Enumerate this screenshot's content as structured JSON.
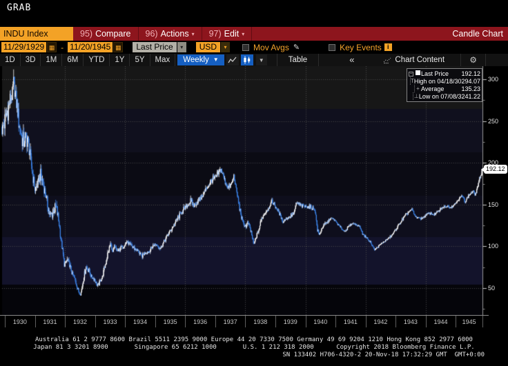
{
  "window": {
    "grab_label": "GRAB"
  },
  "icons": {
    "caret_down": "▾",
    "dropdown_arrow": "▼",
    "calendar": "▦",
    "pencil": "✎",
    "info": "i",
    "collapse": "«",
    "gear": "⚙",
    "expander_minus": "−",
    "legend_markers": {
      "high": "T",
      "average": "+",
      "low": "⊥"
    }
  },
  "titlebar": {
    "security": "INDU Index",
    "compare_num": "95)",
    "compare_label": "Compare",
    "actions_num": "96)",
    "actions_label": "Actions",
    "edit_num": "97)",
    "edit_label": "Edit",
    "title": "Candle Chart"
  },
  "filters": {
    "date_from": "11/29/1929",
    "range_separator": "-",
    "date_to": "11/20/1945",
    "field_select": "Last Price",
    "currency_select": "USD",
    "mov_avgs_label": "Mov Avgs",
    "key_events_label": "Key Events"
  },
  "toolbar": {
    "periods": [
      "1D",
      "3D",
      "1M",
      "6M",
      "YTD",
      "1Y",
      "5Y",
      "Max"
    ],
    "frequency": "Weekly",
    "table_label": "Table",
    "chart_content_label": "Chart Content"
  },
  "chart": {
    "legend": {
      "rows": [
        {
          "label": "Last Price",
          "value": "192.12"
        },
        {
          "label": "High on 04/18/30",
          "value": "294.07"
        },
        {
          "label": "Average",
          "value": "135.23"
        },
        {
          "label": "Low on 07/08/32",
          "value": "41.22"
        }
      ]
    },
    "price_badge": "192.12"
  },
  "chart_data": {
    "type": "candlestick",
    "symbol": "INDU Index",
    "frequency": "Weekly",
    "range_start": "11/29/1929",
    "range_end": "11/20/1945",
    "last_price_value": 192.12,
    "stats": {
      "high": 294.07,
      "high_date": "04/18/30",
      "average": 135.23,
      "low": 41.22,
      "low_date": "07/08/32"
    },
    "y_axis": {
      "ticks": [
        300,
        250,
        200,
        150,
        100,
        50
      ],
      "minor_step": 25,
      "top_value": 315,
      "bottom_value": 18
    },
    "x_axis": {
      "years": [
        "1930",
        "1931",
        "1932",
        "1933",
        "1934",
        "1935",
        "1936",
        "1937",
        "1938",
        "1939",
        "1940",
        "1941",
        "1942",
        "1943",
        "1944",
        "1945"
      ]
    },
    "colors": {
      "up": "#ffffff",
      "down": "#3b82e6",
      "grid": "#4a4a4a",
      "axis": "#999999"
    },
    "anchors": [
      [
        1929.91,
        240
      ],
      [
        1930.0,
        250
      ],
      [
        1930.12,
        268
      ],
      [
        1930.22,
        280
      ],
      [
        1930.3,
        292
      ],
      [
        1930.38,
        275
      ],
      [
        1930.5,
        240
      ],
      [
        1930.62,
        225
      ],
      [
        1930.75,
        230
      ],
      [
        1930.87,
        200
      ],
      [
        1931.0,
        168
      ],
      [
        1931.1,
        175
      ],
      [
        1931.17,
        188
      ],
      [
        1931.3,
        172
      ],
      [
        1931.42,
        150
      ],
      [
        1931.5,
        136
      ],
      [
        1931.58,
        140
      ],
      [
        1931.7,
        148
      ],
      [
        1931.8,
        128
      ],
      [
        1931.9,
        100
      ],
      [
        1931.98,
        78
      ],
      [
        1932.08,
        84
      ],
      [
        1932.2,
        72
      ],
      [
        1932.35,
        58
      ],
      [
        1932.45,
        46
      ],
      [
        1932.52,
        42
      ],
      [
        1932.6,
        58
      ],
      [
        1932.7,
        76
      ],
      [
        1932.78,
        72
      ],
      [
        1932.88,
        64
      ],
      [
        1933.0,
        60
      ],
      [
        1933.08,
        52
      ],
      [
        1933.16,
        58
      ],
      [
        1933.25,
        64
      ],
      [
        1933.4,
        88
      ],
      [
        1933.52,
        104
      ],
      [
        1933.58,
        92
      ],
      [
        1933.65,
        100
      ],
      [
        1933.75,
        94
      ],
      [
        1933.85,
        98
      ],
      [
        1933.95,
        100
      ],
      [
        1934.05,
        106
      ],
      [
        1934.15,
        102
      ],
      [
        1934.3,
        98
      ],
      [
        1934.45,
        94
      ],
      [
        1934.55,
        88
      ],
      [
        1934.65,
        92
      ],
      [
        1934.8,
        94
      ],
      [
        1934.95,
        102
      ],
      [
        1935.05,
        102
      ],
      [
        1935.18,
        98
      ],
      [
        1935.3,
        106
      ],
      [
        1935.45,
        116
      ],
      [
        1935.6,
        124
      ],
      [
        1935.75,
        134
      ],
      [
        1935.9,
        142
      ],
      [
        1936.05,
        148
      ],
      [
        1936.18,
        154
      ],
      [
        1936.28,
        148
      ],
      [
        1936.45,
        156
      ],
      [
        1936.6,
        162
      ],
      [
        1936.75,
        172
      ],
      [
        1936.9,
        180
      ],
      [
        1937.0,
        182
      ],
      [
        1937.12,
        188
      ],
      [
        1937.2,
        192
      ],
      [
        1937.32,
        178
      ],
      [
        1937.45,
        170
      ],
      [
        1937.55,
        176
      ],
      [
        1937.62,
        184
      ],
      [
        1937.72,
        164
      ],
      [
        1937.8,
        148
      ],
      [
        1937.9,
        130
      ],
      [
        1938.0,
        124
      ],
      [
        1938.1,
        128
      ],
      [
        1938.2,
        116
      ],
      [
        1938.28,
        102
      ],
      [
        1938.35,
        110
      ],
      [
        1938.45,
        120
      ],
      [
        1938.55,
        134
      ],
      [
        1938.65,
        140
      ],
      [
        1938.78,
        146
      ],
      [
        1938.88,
        154
      ],
      [
        1939.0,
        148
      ],
      [
        1939.12,
        140
      ],
      [
        1939.25,
        130
      ],
      [
        1939.38,
        134
      ],
      [
        1939.5,
        136
      ],
      [
        1939.62,
        140
      ],
      [
        1939.7,
        152
      ],
      [
        1939.8,
        150
      ],
      [
        1939.92,
        148
      ],
      [
        1940.05,
        148
      ],
      [
        1940.2,
        146
      ],
      [
        1940.32,
        144
      ],
      [
        1940.4,
        120
      ],
      [
        1940.46,
        114
      ],
      [
        1940.58,
        124
      ],
      [
        1940.7,
        128
      ],
      [
        1940.85,
        134
      ],
      [
        1940.95,
        132
      ],
      [
        1941.05,
        128
      ],
      [
        1941.18,
        122
      ],
      [
        1941.3,
        118
      ],
      [
        1941.45,
        124
      ],
      [
        1941.58,
        128
      ],
      [
        1941.7,
        126
      ],
      [
        1941.8,
        124
      ],
      [
        1941.92,
        114
      ],
      [
        1942.05,
        110
      ],
      [
        1942.18,
        104
      ],
      [
        1942.3,
        96
      ],
      [
        1942.42,
        100
      ],
      [
        1942.55,
        104
      ],
      [
        1942.7,
        108
      ],
      [
        1942.85,
        112
      ],
      [
        1943.0,
        120
      ],
      [
        1943.15,
        128
      ],
      [
        1943.3,
        136
      ],
      [
        1943.45,
        142
      ],
      [
        1943.55,
        144
      ],
      [
        1943.65,
        136
      ],
      [
        1943.78,
        134
      ],
      [
        1943.9,
        134
      ],
      [
        1944.02,
        138
      ],
      [
        1944.15,
        140
      ],
      [
        1944.28,
        138
      ],
      [
        1944.42,
        142
      ],
      [
        1944.55,
        146
      ],
      [
        1944.7,
        148
      ],
      [
        1944.85,
        147
      ],
      [
        1945.0,
        152
      ],
      [
        1945.12,
        158
      ],
      [
        1945.22,
        160
      ],
      [
        1945.32,
        154
      ],
      [
        1945.45,
        162
      ],
      [
        1945.58,
        166
      ],
      [
        1945.65,
        162
      ],
      [
        1945.75,
        174
      ],
      [
        1945.82,
        184
      ],
      [
        1945.89,
        192.12
      ]
    ]
  },
  "footer": {
    "lines": [
      "Australia 61 2 9777 8600 Brazil 5511 2395 9000 Europe 44 20 7330 7500 Germany 49 69 9204 1210 Hong Kong 852 2977 6000",
      "Japan 81 3 3201 8900       Singapore 65 6212 1000       U.S. 1 212 318 2000      Copyright 2018 Bloomberg Finance L.P.",
      "SN 133402 H706-4320-2 20-Nov-18 17:32:29 GMT  GMT+0:00"
    ]
  }
}
